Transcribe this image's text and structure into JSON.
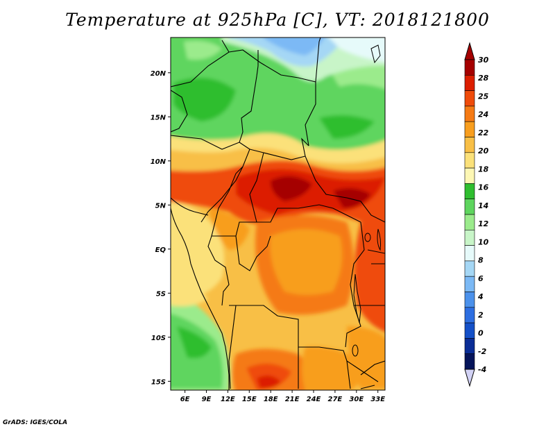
{
  "title": "Temperature at 925hPa [C], VT: 2018121800",
  "credit": "GrADS: IGES/COLA",
  "map": {
    "lon_range": [
      4,
      34
    ],
    "lat_range": [
      -16,
      24
    ],
    "lon_ticks": [
      "6E",
      "9E",
      "12E",
      "15E",
      "18E",
      "21E",
      "24E",
      "27E",
      "30E",
      "33E"
    ],
    "lat_ticks": [
      "20N",
      "15N",
      "10N",
      "5N",
      "EQ",
      "5S",
      "10S",
      "15S"
    ]
  },
  "colorbar": {
    "labels": [
      "30",
      "28",
      "25",
      "24",
      "22",
      "20",
      "18",
      "16",
      "14",
      "12",
      "10",
      "8",
      "6",
      "4",
      "2",
      "0",
      "-2",
      "-4"
    ],
    "colors": [
      "#a50000",
      "#dc1e00",
      "#ef4b0a",
      "#f57a14",
      "#f89e1e",
      "#f8bf46",
      "#fbe17a",
      "#fdf7b4",
      "#2fbe2f",
      "#5ed55e",
      "#9beb8c",
      "#c8f5c8",
      "#e6fafa",
      "#a5d7f5",
      "#7bb9f5",
      "#4b91eb",
      "#2d6ee1",
      "#1450c8",
      "#0a2d96",
      "#05145a"
    ],
    "over_color": "#a50000",
    "under_color": "#d2d2f5"
  }
}
